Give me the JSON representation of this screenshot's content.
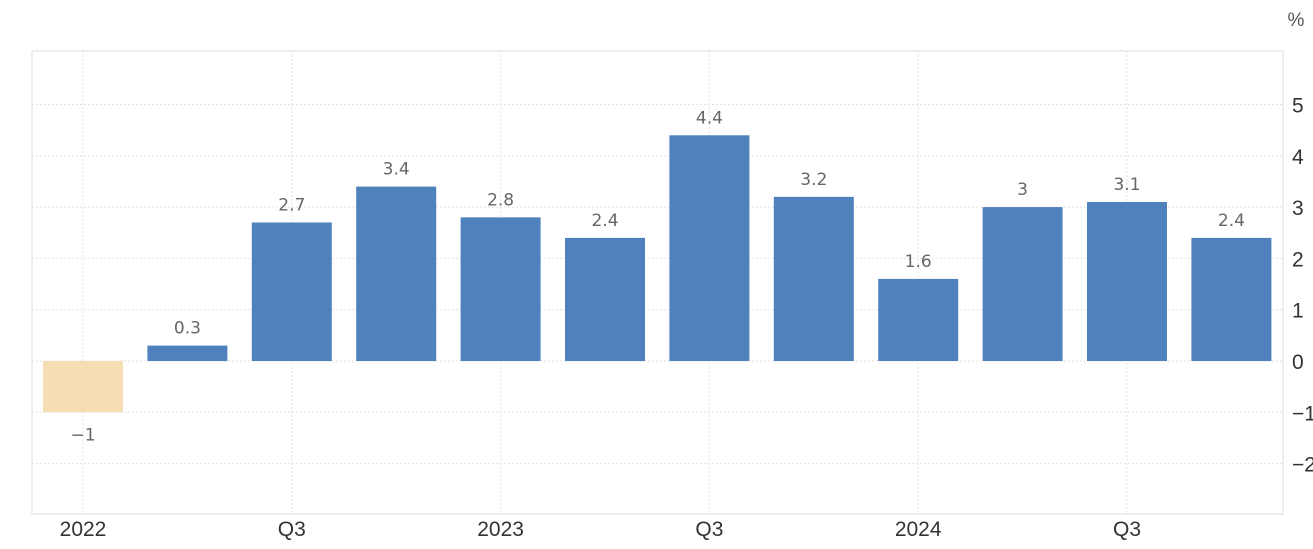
{
  "chart_data": {
    "type": "bar",
    "unit": "%",
    "categories": [
      "2022 Q1",
      "2022 Q2",
      "2022 Q3",
      "2022 Q4",
      "2023 Q1",
      "2023 Q2",
      "2023 Q3",
      "2023 Q4",
      "2024 Q1",
      "2024 Q2",
      "2024 Q3",
      "2024 Q4"
    ],
    "values": [
      -1,
      0.3,
      2.7,
      3.4,
      2.8,
      2.4,
      4.4,
      3.2,
      1.6,
      3,
      3.1,
      2.4
    ],
    "data_labels": [
      "-1",
      "0.3",
      "2.7",
      "3.4",
      "2.8",
      "2.4",
      "4.4",
      "3.2",
      "1.6",
      "3",
      "3.1",
      "2.4"
    ],
    "x_tick_labels": [
      {
        "category_index": 0,
        "label": "2022"
      },
      {
        "category_index": 2,
        "label": "Q3"
      },
      {
        "category_index": 4,
        "label": "2023"
      },
      {
        "category_index": 6,
        "label": "Q3"
      },
      {
        "category_index": 8,
        "label": "2024"
      },
      {
        "category_index": 10,
        "label": "Q3"
      }
    ],
    "y_ticks": [
      5,
      4,
      3,
      2,
      1,
      0,
      -1,
      -2
    ],
    "y_tick_labels": [
      "5",
      "4",
      "3",
      "2",
      "1",
      "0",
      "-1",
      "-2"
    ],
    "ylim": [
      -3,
      6
    ],
    "yaxis_position": "right",
    "grid": true,
    "legend": false,
    "colors": {
      "positive": "#4f81bd",
      "negative": "#f5deb3"
    },
    "title": "",
    "xlabel": "",
    "ylabel": ""
  }
}
